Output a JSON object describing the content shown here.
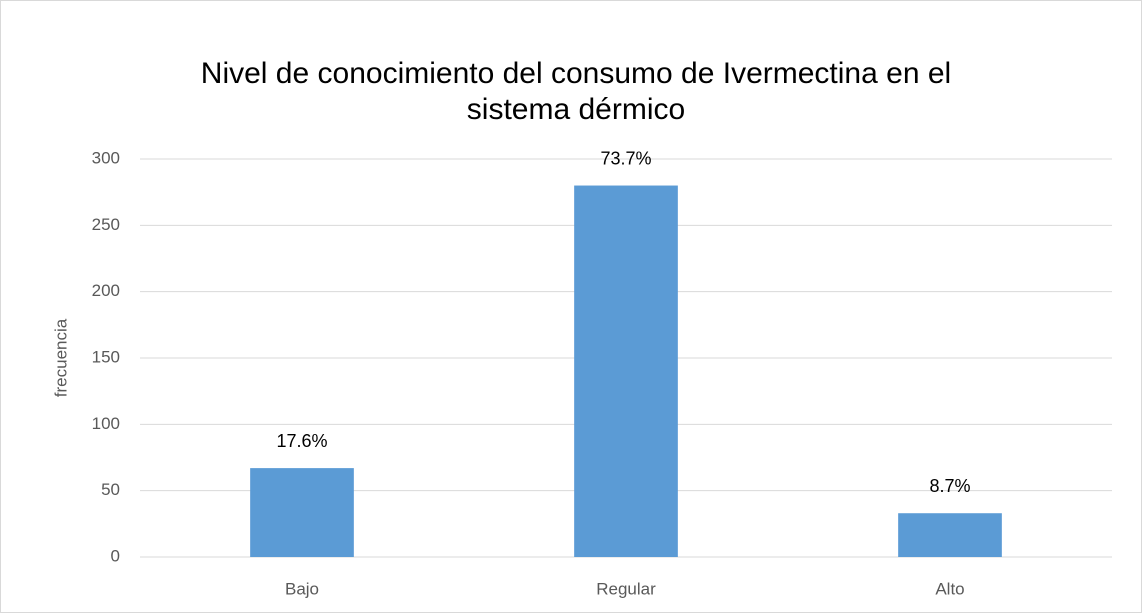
{
  "chart_data": {
    "type": "bar",
    "title_lines": [
      "Nivel de conocimiento del consumo de Ivermectina en el",
      "sistema dérmico"
    ],
    "ylabel": "frecuencia",
    "categories": [
      "Bajo",
      "Regular",
      "Alto"
    ],
    "values": [
      67,
      280,
      33
    ],
    "data_labels": [
      "17.6%",
      "73.7%",
      "8.7%"
    ],
    "color": "#5b9bd5",
    "ylim": [
      0,
      300
    ],
    "yticks": [
      0,
      50,
      100,
      150,
      200,
      250,
      300
    ],
    "grid": true
  }
}
